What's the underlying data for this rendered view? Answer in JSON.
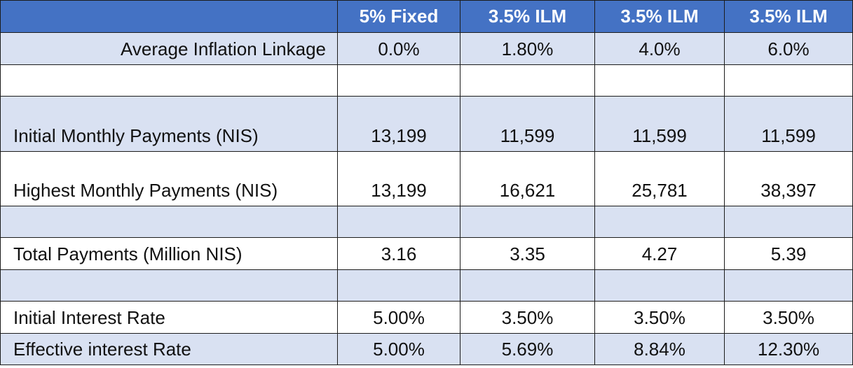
{
  "header": [
    "",
    "5% Fixed",
    "3.5% ILM",
    "3.5% ILM",
    "3.5% ILM"
  ],
  "rows": {
    "inflation": {
      "label": "Average Inflation Linkage",
      "values": [
        "0.0%",
        "1.80%",
        "4.0%",
        "6.0%"
      ]
    },
    "initial_monthly": {
      "label": "Initial Monthly Payments (NIS)",
      "values": [
        "13,199",
        "11,599",
        "11,599",
        "11,599"
      ]
    },
    "highest_monthly": {
      "label": "Highest Monthly Payments (NIS)",
      "values": [
        "13,199",
        "16,621",
        "25,781",
        "38,397"
      ]
    },
    "total_payments": {
      "label": "Total Payments (Million NIS)",
      "values": [
        "3.16",
        "3.35",
        "4.27",
        "5.39"
      ]
    },
    "initial_rate": {
      "label": "Initial Interest Rate",
      "values": [
        "5.00%",
        "3.50%",
        "3.50%",
        "3.50%"
      ]
    },
    "effective_rate": {
      "label": "Effective interest Rate",
      "values": [
        "5.00%",
        "5.69%",
        "8.84%",
        "12.30%"
      ]
    }
  },
  "colors": {
    "header_bg": "#4472c4",
    "band_bg": "#d9e1f2",
    "border": "#1c1c1c"
  }
}
